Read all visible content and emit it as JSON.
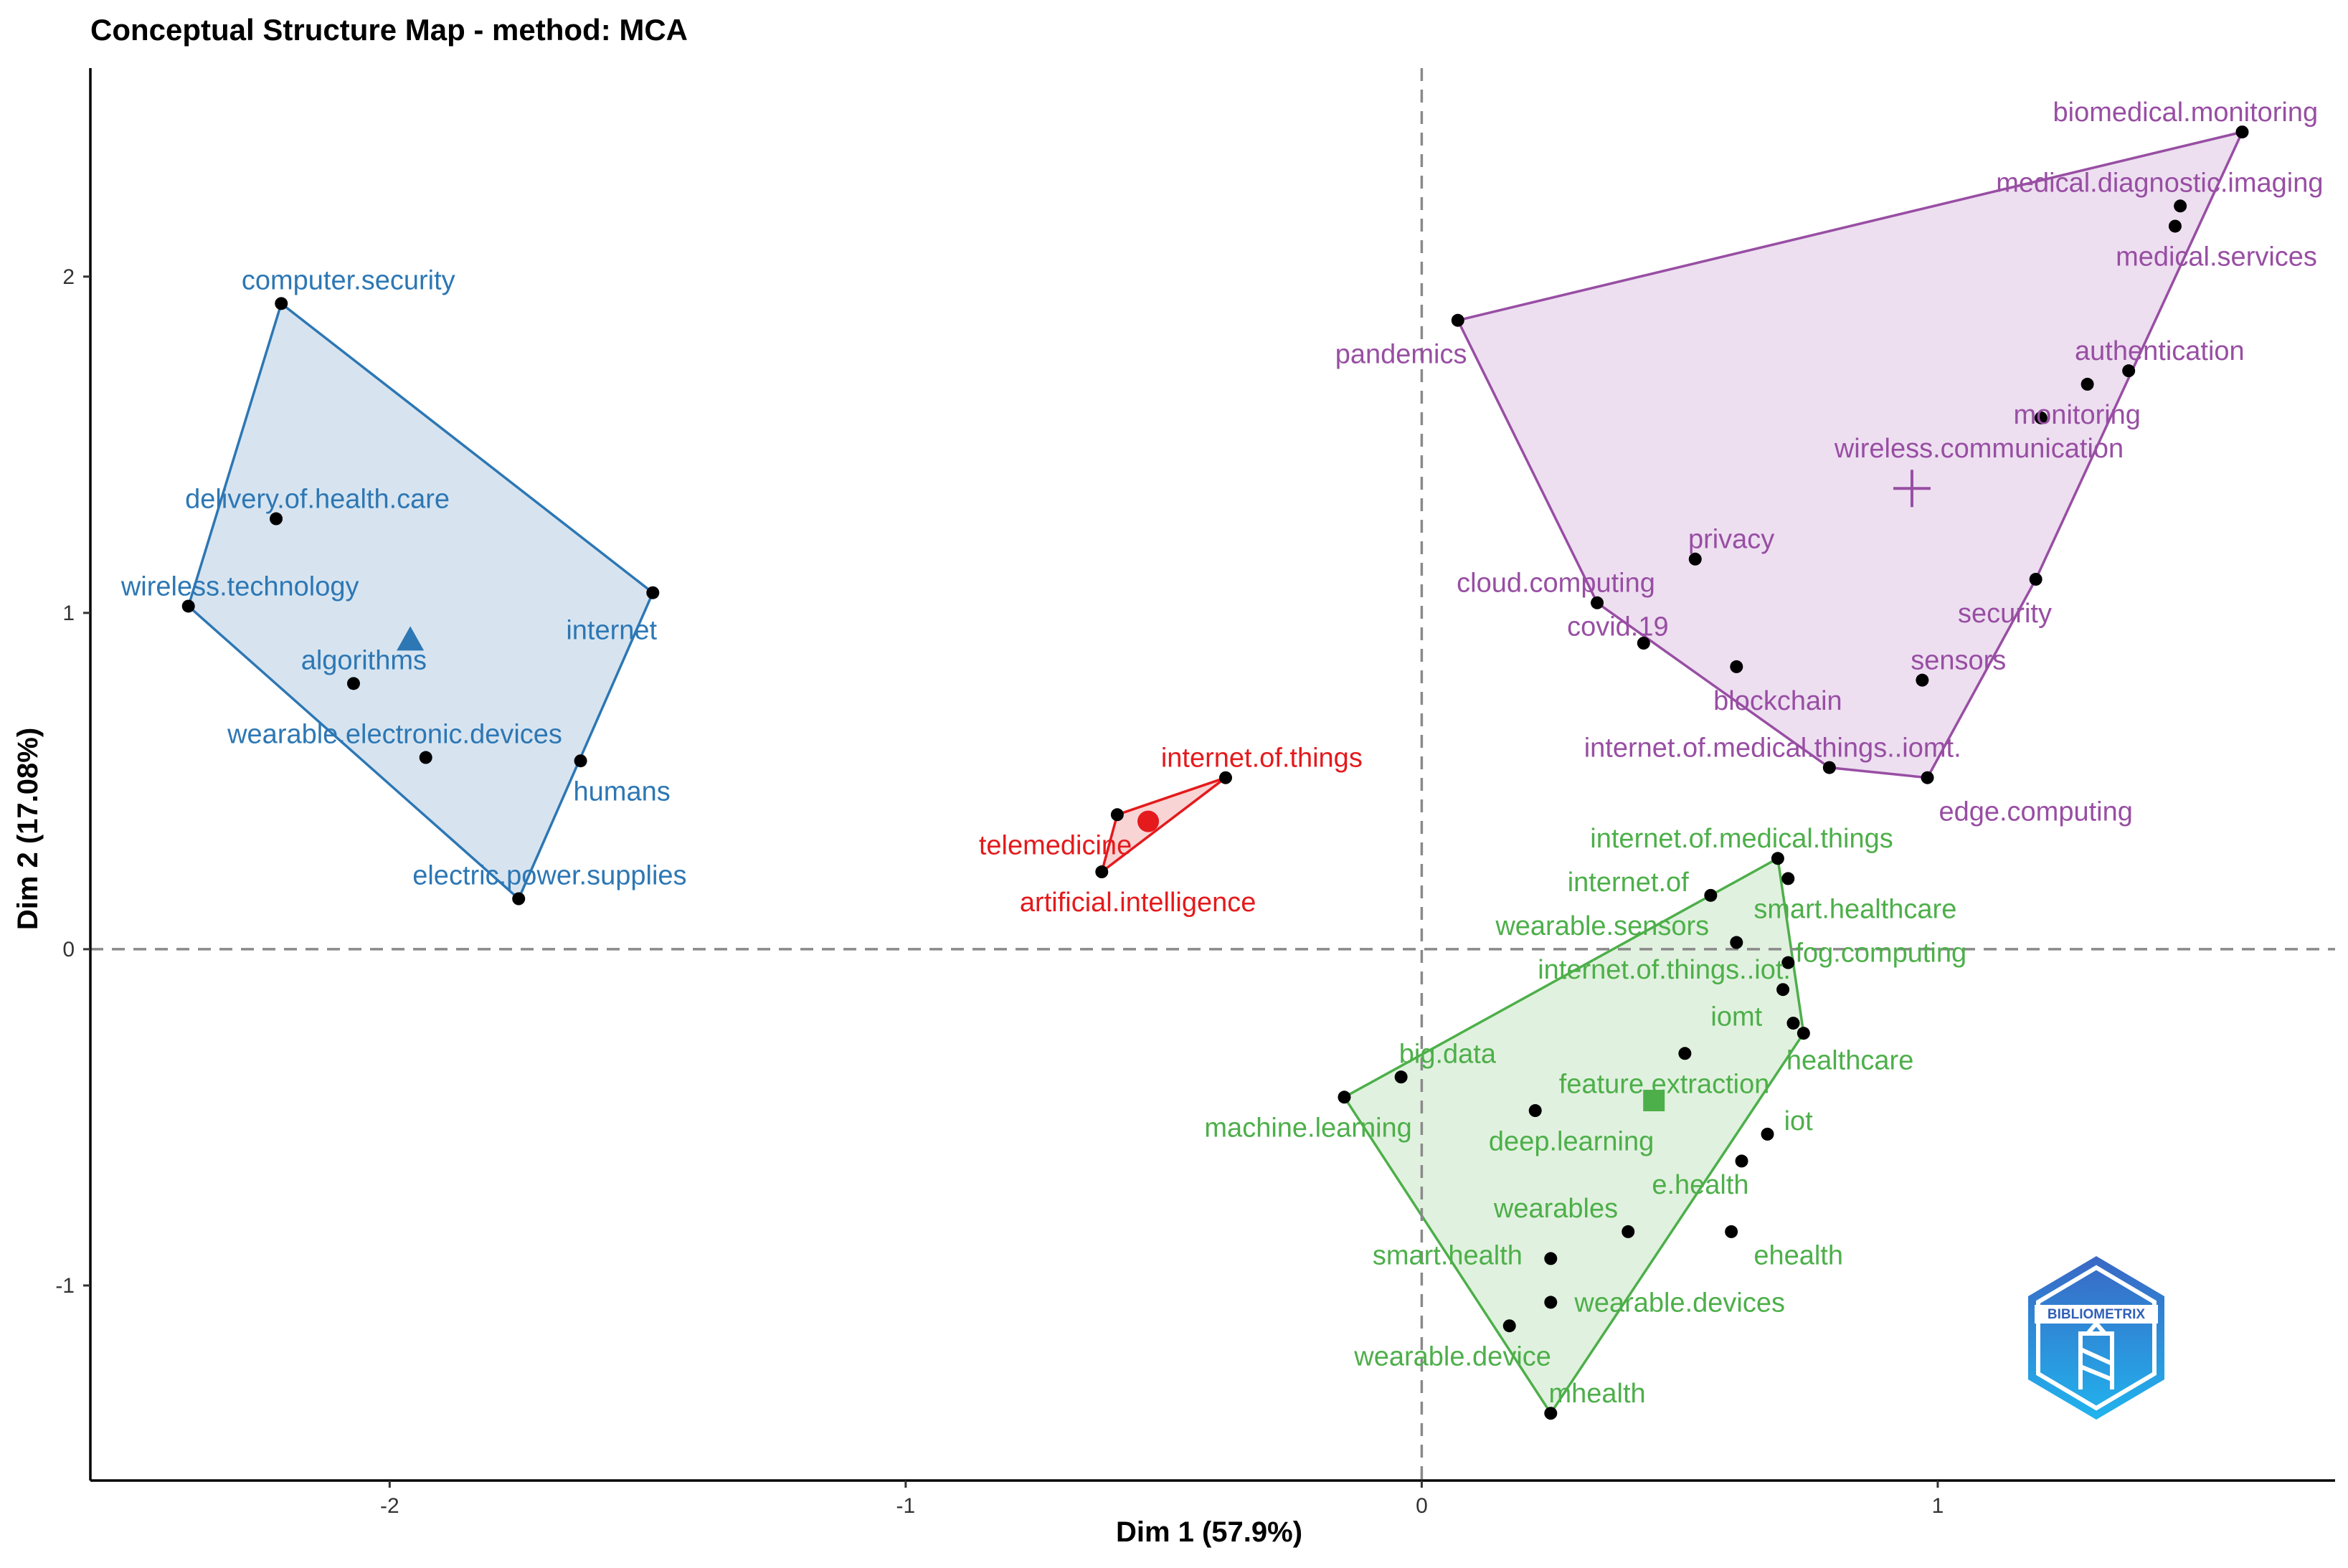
{
  "chart_data": {
    "type": "scatter",
    "title": "Conceptual Structure Map - method: MCA",
    "xlabel": "Dim 1 (57.9%)",
    "ylabel": "Dim 2 (17.08%)",
    "xlim": [
      -2.58,
      1.77
    ],
    "ylim": [
      -1.58,
      2.62
    ],
    "x_ticks": [
      {
        "value": -2,
        "label": "-2"
      },
      {
        "value": -1,
        "label": "-1"
      },
      {
        "value": 0,
        "label": "0"
      },
      {
        "value": 1,
        "label": "1"
      }
    ],
    "y_ticks": [
      {
        "value": -1,
        "label": "-1"
      },
      {
        "value": 0,
        "label": "0"
      },
      {
        "value": 1,
        "label": "1"
      },
      {
        "value": 2,
        "label": "2"
      }
    ],
    "reference_lines": {
      "x": 0,
      "y": 0
    },
    "clusters": [
      {
        "name": "cluster-blue",
        "color": "#2D77B4",
        "fill": "#BFD4E7",
        "centroid": {
          "x": -1.96,
          "y": 0.92,
          "marker": "triangle"
        },
        "hull": [
          [
            -2.21,
            1.92
          ],
          [
            -1.49,
            1.06
          ],
          [
            -1.75,
            0.15
          ],
          [
            -2.39,
            1.02
          ]
        ],
        "points": [
          {
            "label": "computer.security",
            "x": -2.21,
            "y": 1.92,
            "lx": -2.08,
            "ly": 1.99
          },
          {
            "label": "delivery.of.health.care",
            "x": -2.22,
            "y": 1.28,
            "lx": -2.14,
            "ly": 1.34
          },
          {
            "label": "wireless.technology",
            "x": -2.39,
            "y": 1.02,
            "lx": -2.29,
            "ly": 1.08
          },
          {
            "label": "internet",
            "x": -1.49,
            "y": 1.06,
            "lx": -1.57,
            "ly": 0.95
          },
          {
            "label": "algorithms",
            "x": -2.07,
            "y": 0.79,
            "lx": -2.05,
            "ly": 0.86
          },
          {
            "label": "wearable.electronic.devices",
            "x": -1.93,
            "y": 0.57,
            "lx": -1.99,
            "ly": 0.64
          },
          {
            "label": "humans",
            "x": -1.63,
            "y": 0.56,
            "lx": -1.55,
            "ly": 0.47
          },
          {
            "label": "electric.power.supplies",
            "x": -1.75,
            "y": 0.15,
            "lx": -1.69,
            "ly": 0.22
          }
        ]
      },
      {
        "name": "cluster-red",
        "color": "#E41A1C",
        "fill": "#F4B9BA",
        "centroid": {
          "x": -0.53,
          "y": 0.38,
          "marker": "circle"
        },
        "hull": [
          [
            -0.38,
            0.51
          ],
          [
            -0.59,
            0.4
          ],
          [
            -0.62,
            0.23
          ]
        ],
        "points": [
          {
            "label": "internet.of.things",
            "x": -0.38,
            "y": 0.51,
            "lx": -0.31,
            "ly": 0.57
          },
          {
            "label": "telemedicine",
            "x": -0.59,
            "y": 0.4,
            "lx": -0.71,
            "ly": 0.31
          },
          {
            "label": "artificial.intelligence",
            "x": -0.62,
            "y": 0.23,
            "lx": -0.55,
            "ly": 0.14
          }
        ]
      },
      {
        "name": "cluster-purple",
        "color": "#984EA3",
        "fill": "#E2CCE6",
        "centroid": {
          "x": 0.95,
          "y": 1.37,
          "marker": "cross"
        },
        "hull": [
          [
            0.07,
            1.87
          ],
          [
            1.59,
            2.43
          ],
          [
            1.19,
            1.1
          ],
          [
            0.98,
            0.51
          ],
          [
            0.79,
            0.54
          ],
          [
            0.34,
            1.03
          ]
        ],
        "points": [
          {
            "label": "biomedical.monitoring",
            "x": 1.59,
            "y": 2.43,
            "lx": 1.48,
            "ly": 2.49
          },
          {
            "label": "medical.diagnostic.imaging",
            "x": 1.47,
            "y": 2.21,
            "lx": 1.43,
            "ly": 2.28
          },
          {
            "label": "medical.services",
            "x": 1.46,
            "y": 2.15,
            "lx": 1.54,
            "ly": 2.06
          },
          {
            "label": "pandemics",
            "x": 0.07,
            "y": 1.87,
            "lx": -0.04,
            "ly": 1.77
          },
          {
            "label": "authentication",
            "x": 1.37,
            "y": 1.72,
            "lx": 1.43,
            "ly": 1.78
          },
          {
            "label": "monitoring",
            "x": 1.29,
            "y": 1.68,
            "lx": 1.27,
            "ly": 1.59
          },
          {
            "label": "wireless.communication",
            "x": 1.2,
            "y": 1.58,
            "lx": 1.08,
            "ly": 1.49
          },
          {
            "label": "privacy",
            "x": 0.53,
            "y": 1.16,
            "lx": 0.6,
            "ly": 1.22
          },
          {
            "label": "cloud.computing",
            "x": 0.34,
            "y": 1.03,
            "lx": 0.26,
            "ly": 1.09
          },
          {
            "label": "security",
            "x": 1.19,
            "y": 1.1,
            "lx": 1.13,
            "ly": 1.0
          },
          {
            "label": "covid.19",
            "x": 0.43,
            "y": 0.91,
            "lx": 0.38,
            "ly": 0.96
          },
          {
            "label": "blockchain",
            "x": 0.61,
            "y": 0.84,
            "lx": 0.69,
            "ly": 0.74
          },
          {
            "label": "sensors",
            "x": 0.97,
            "y": 0.8,
            "lx": 1.04,
            "ly": 0.86
          },
          {
            "label": "internet.of.medical.things..iomt.",
            "x": 0.79,
            "y": 0.54,
            "lx": 0.68,
            "ly": 0.6
          },
          {
            "label": "edge.computing",
            "x": 0.98,
            "y": 0.51,
            "lx": 1.19,
            "ly": 0.41
          }
        ]
      },
      {
        "name": "cluster-green",
        "color": "#4DAF4A",
        "fill": "#CEE9CC",
        "centroid": {
          "x": 0.45,
          "y": -0.45,
          "marker": "square"
        },
        "hull": [
          [
            0.69,
            0.27
          ],
          [
            0.74,
            -0.25
          ],
          [
            0.25,
            -1.38
          ],
          [
            -0.15,
            -0.44
          ],
          [
            0.56,
            0.16
          ]
        ],
        "points": [
          {
            "label": "internet.of.medical.things",
            "x": 0.69,
            "y": 0.27,
            "lx": 0.62,
            "ly": 0.33
          },
          {
            "label": "internet.of",
            "x": 0.56,
            "y": 0.16,
            "lx": 0.4,
            "ly": 0.2
          },
          {
            "label": "smart.healthcare",
            "x": 0.71,
            "y": 0.21,
            "lx": 0.84,
            "ly": 0.12
          },
          {
            "label": "wearable.sensors",
            "x": 0.61,
            "y": 0.02,
            "lx": 0.35,
            "ly": 0.07
          },
          {
            "label": "fog.computing",
            "x": 0.71,
            "y": -0.04,
            "lx": 0.89,
            "ly": -0.01
          },
          {
            "label": "internet.of.things..iot.",
            "x": 0.7,
            "y": -0.12,
            "lx": 0.47,
            "ly": -0.06
          },
          {
            "label": "iomt",
            "x": 0.72,
            "y": -0.22,
            "lx": 0.61,
            "ly": -0.2
          },
          {
            "label": "healthcare",
            "x": 0.74,
            "y": -0.25,
            "lx": 0.83,
            "ly": -0.33
          },
          {
            "label": "big.data",
            "x": -0.04,
            "y": -0.38,
            "lx": 0.05,
            "ly": -0.31
          },
          {
            "label": "feature.extraction",
            "x": 0.51,
            "y": -0.31,
            "lx": 0.47,
            "ly": -0.4
          },
          {
            "label": "machine.learning",
            "x": -0.15,
            "y": -0.44,
            "lx": -0.22,
            "ly": -0.53
          },
          {
            "label": "deep.learning",
            "x": 0.22,
            "y": -0.48,
            "lx": 0.29,
            "ly": -0.57
          },
          {
            "label": "iot",
            "x": 0.67,
            "y": -0.55,
            "lx": 0.73,
            "ly": -0.51
          },
          {
            "label": "e.health",
            "x": 0.62,
            "y": -0.63,
            "lx": 0.54,
            "ly": -0.7
          },
          {
            "label": "wearables",
            "x": 0.4,
            "y": -0.84,
            "lx": 0.26,
            "ly": -0.77
          },
          {
            "label": "ehealth",
            "x": 0.6,
            "y": -0.84,
            "lx": 0.73,
            "ly": -0.91
          },
          {
            "label": "smart.health",
            "x": 0.25,
            "y": -0.92,
            "lx": 0.05,
            "ly": -0.91
          },
          {
            "label": "wearable.devices",
            "x": 0.25,
            "y": -1.05,
            "lx": 0.5,
            "ly": -1.05
          },
          {
            "label": "wearable.device",
            "x": 0.17,
            "y": -1.12,
            "lx": 0.06,
            "ly": -1.21
          },
          {
            "label": "mhealth",
            "x": 0.25,
            "y": -1.38,
            "lx": 0.34,
            "ly": -1.32
          }
        ]
      }
    ]
  },
  "logo": {
    "text": "BIBLIOMETRIX",
    "color_top": "#3A67C4",
    "color_bottom": "#21B4EE"
  }
}
